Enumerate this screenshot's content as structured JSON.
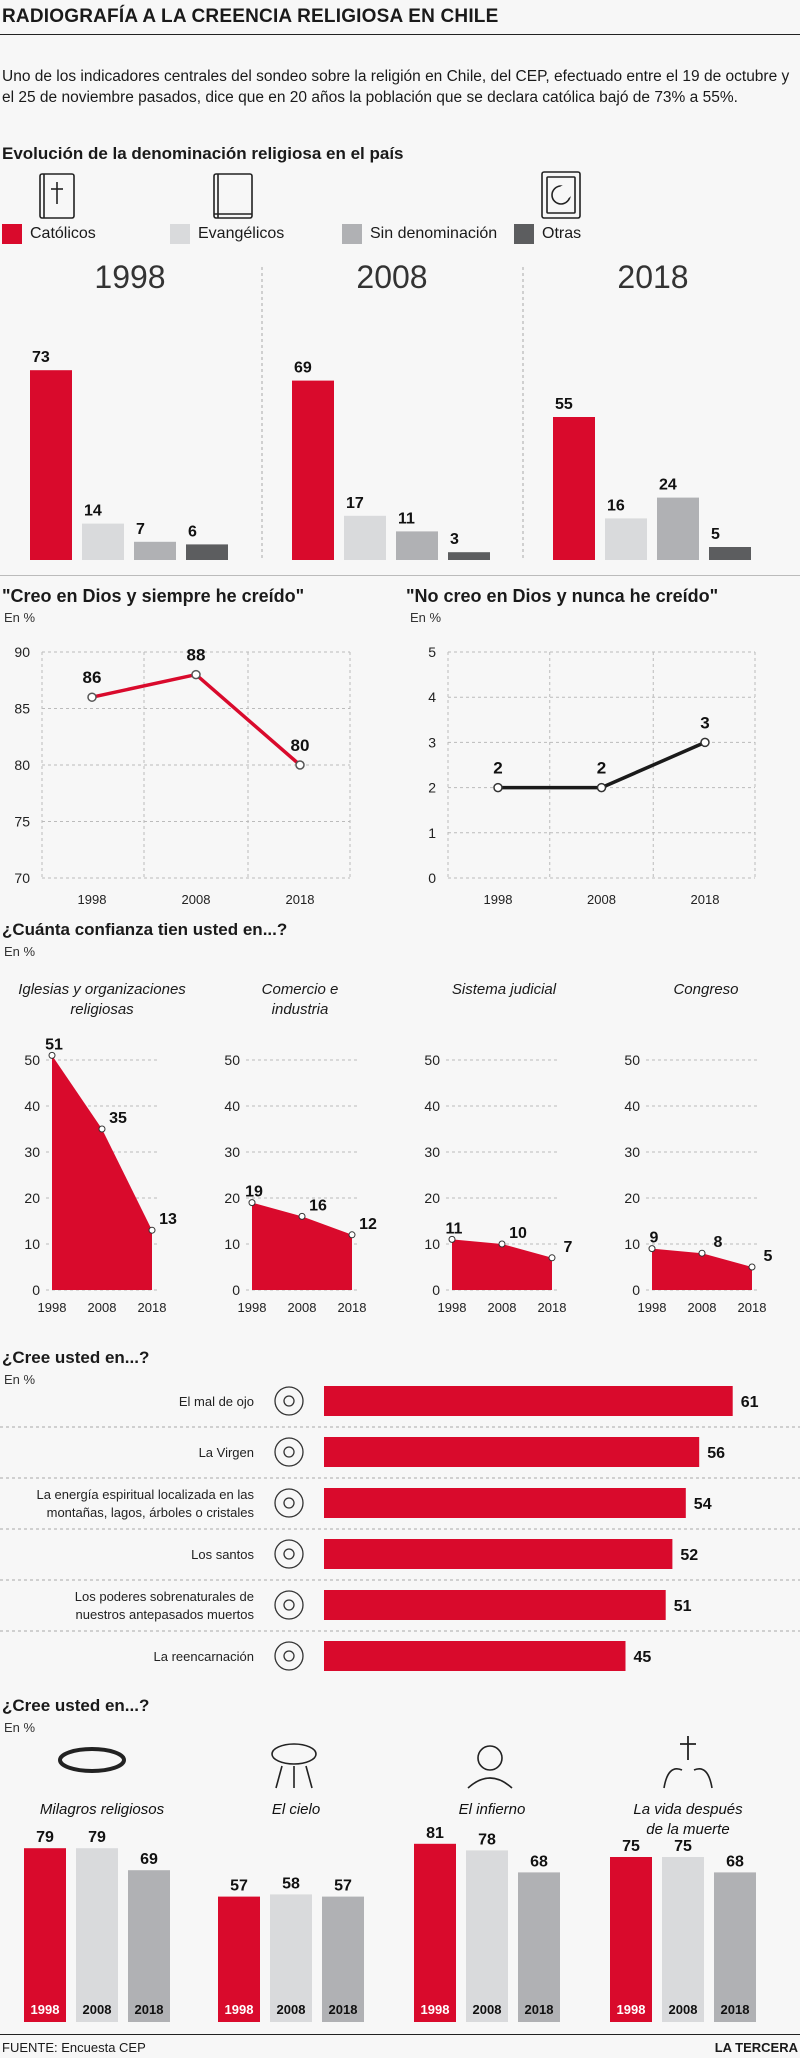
{
  "header": {
    "title": "RADIOGRAFÍA A LA CREENCIA RELIGIOSA EN CHILE",
    "intro": "Uno de los indicadores centrales del sondeo sobre la religión en Chile, del CEP, efectuado entre el 19 de octubre y el 25 de noviembre pasados, dice que en 20 años la población que se declara católica bajó de 73% a 55%."
  },
  "colors": {
    "red": "#d90a2c",
    "light": "#d9dadc",
    "mid": "#b0b1b4",
    "dark": "#5c5d5f"
  },
  "section1": {
    "title": "Evolución de la denominación religiosa en el país",
    "legend": [
      "Católicos",
      "Evangélicos",
      "Sin denominación",
      "Otras"
    ],
    "icons": [
      "bible-cross-icon",
      "book-icon",
      "quran-icon"
    ]
  },
  "section2": {
    "left_title": "\"Creo en Dios y siempre he creído\"",
    "right_title": "\"No creo en Dios y nunca he creído\"",
    "unit": "En %"
  },
  "section3": {
    "title": "¿Cuánta confianza tien usted en...?",
    "unit": "En %"
  },
  "section4": {
    "title": "¿Cree usted en...?",
    "unit": "En %",
    "icons": [
      "eye-icon",
      "virgin-icon",
      "nature-icon",
      "halo-icon",
      "hands-heart-icon",
      "spiral-icon"
    ]
  },
  "section5": {
    "title": "¿Cree usted en...?",
    "unit": "En %",
    "icons": [
      "halo-ring-icon",
      "cloud-icon",
      "devil-icon",
      "praying-cross-icon"
    ]
  },
  "footer": {
    "source": "FUENTE: Encuesta CEP",
    "brand": "LA TERCERA"
  },
  "chart_data": [
    {
      "type": "bar",
      "title": "Evolución de la denominación religiosa en el país",
      "groups": [
        "1998",
        "2008",
        "2018"
      ],
      "series": [
        {
          "name": "Católicos",
          "values": [
            73,
            69,
            55
          ],
          "color": "#d90a2c"
        },
        {
          "name": "Evangélicos",
          "values": [
            14,
            17,
            16
          ],
          "color": "#d9dadc"
        },
        {
          "name": "Sin denominación",
          "values": [
            7,
            11,
            24
          ],
          "color": "#b0b1b4"
        },
        {
          "name": "Otras",
          "values": [
            6,
            3,
            5
          ],
          "color": "#5c5d5f"
        }
      ]
    },
    {
      "type": "line",
      "title": "\"Creo en Dios y siempre he creído\"",
      "ylabel": "En %",
      "x": [
        "1998",
        "2008",
        "2018"
      ],
      "values": [
        86,
        88,
        80
      ],
      "ylim": [
        70,
        90
      ],
      "yticks": [
        70,
        75,
        80,
        85,
        90
      ],
      "color": "#d90a2c",
      "grid": true
    },
    {
      "type": "line",
      "title": "\"No creo en Dios y nunca he creído\"",
      "ylabel": "En %",
      "x": [
        "1998",
        "2008",
        "2018"
      ],
      "values": [
        2,
        2,
        3
      ],
      "ylim": [
        0,
        5
      ],
      "yticks": [
        0,
        1,
        2,
        3,
        4,
        5
      ],
      "color": "#1a1a1a",
      "grid": true
    },
    {
      "type": "area",
      "title": "¿Cuánta confianza tien usted en...?",
      "ylabel": "En %",
      "x": [
        "1998",
        "2008",
        "2018"
      ],
      "ylim": [
        0,
        50
      ],
      "yticks": [
        0,
        10,
        20,
        30,
        40,
        50
      ],
      "series": [
        {
          "name": "Iglesias y organizaciones religiosas",
          "values": [
            51,
            35,
            13
          ]
        },
        {
          "name": "Comercio e industria",
          "values": [
            19,
            16,
            12
          ]
        },
        {
          "name": "Sistema judicial",
          "values": [
            11,
            10,
            7
          ]
        },
        {
          "name": "Congreso",
          "values": [
            9,
            8,
            5
          ]
        }
      ]
    },
    {
      "type": "bar",
      "orientation": "horizontal",
      "title": "¿Cree usted en...?",
      "ylabel": "En %",
      "categories": [
        "El mal de ojo",
        "La Virgen",
        "La energía espiritual localizada en las montañas, lagos, árboles o cristales",
        "Los santos",
        "Los poderes sobrenaturales de nuestros antepasados muertos",
        "La reencarnación"
      ],
      "category_lines": [
        [
          "El mal de ojo"
        ],
        [
          "La Virgen"
        ],
        [
          "La energía espiritual localizada en las",
          "montañas, lagos, árboles o cristales"
        ],
        [
          "Los santos"
        ],
        [
          "Los poderes sobrenaturales de",
          "nuestros antepasados muertos"
        ],
        [
          "La reencarnación"
        ]
      ],
      "values": [
        61,
        56,
        54,
        52,
        51,
        45
      ],
      "color": "#d90a2c"
    },
    {
      "type": "bar",
      "title": "¿Cree usted en...?",
      "ylabel": "En %",
      "x": [
        "1998",
        "2008",
        "2018"
      ],
      "series": [
        {
          "name": "Milagros religiosos",
          "lines": [
            "Milagros religiosos"
          ],
          "values": [
            79,
            79,
            69
          ]
        },
        {
          "name": "El cielo",
          "lines": [
            "El cielo"
          ],
          "values": [
            57,
            58,
            57
          ]
        },
        {
          "name": "El infierno",
          "lines": [
            "El infierno"
          ],
          "values": [
            81,
            78,
            68
          ]
        },
        {
          "name": "La vida después de la muerte",
          "lines": [
            "La vida después",
            "de la muerte"
          ],
          "values": [
            75,
            75,
            68
          ]
        }
      ],
      "colors": [
        "#d90a2c",
        "#d9dadc",
        "#b0b1b4"
      ]
    }
  ]
}
